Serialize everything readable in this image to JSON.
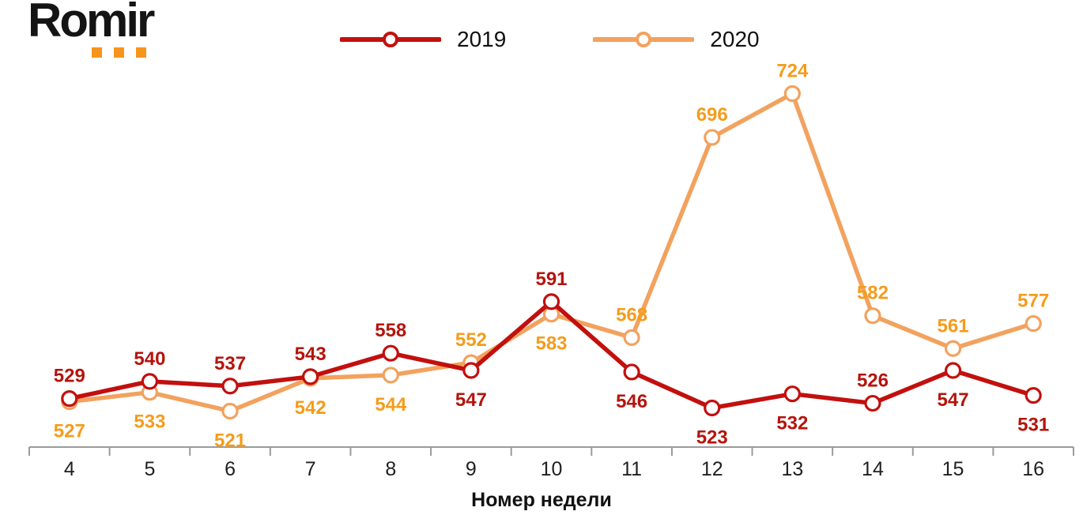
{
  "logo": {
    "text": "Romir",
    "dots_color": "#F7941D"
  },
  "x_axis": {
    "title": "Номер недели"
  },
  "chart_data": {
    "type": "line",
    "title": "",
    "x": [
      4,
      5,
      6,
      7,
      8,
      9,
      10,
      11,
      12,
      13,
      14,
      15,
      16
    ],
    "xlabel": "Номер недели",
    "ylabel": "",
    "ylim": [
      498,
      740
    ],
    "grid": false,
    "legend_position": "top-center",
    "axis_color": "#9B9B9B",
    "tick_label_color": "#1F1F1F",
    "series": [
      {
        "name": "2020",
        "color": "#F2A25E",
        "label_color": "#F59C1B",
        "values": [
          527,
          533,
          521,
          542,
          544,
          552,
          583,
          568,
          696,
          724,
          582,
          561,
          577
        ],
        "label_positions": [
          "below",
          "below",
          "below",
          "below",
          "below",
          "above",
          "below",
          "above",
          "above",
          "above",
          "above",
          "above",
          "above"
        ]
      },
      {
        "name": "2019",
        "color": "#C2100E",
        "label_color": "#B5140C",
        "values": [
          529,
          540,
          537,
          543,
          558,
          547,
          591,
          546,
          523,
          532,
          526,
          547,
          531
        ],
        "label_positions": [
          "above",
          "above",
          "above",
          "above",
          "above",
          "below",
          "above",
          "below",
          "below",
          "below",
          "above",
          "below",
          "below"
        ]
      }
    ],
    "legend_order": [
      "2019",
      "2020"
    ]
  }
}
